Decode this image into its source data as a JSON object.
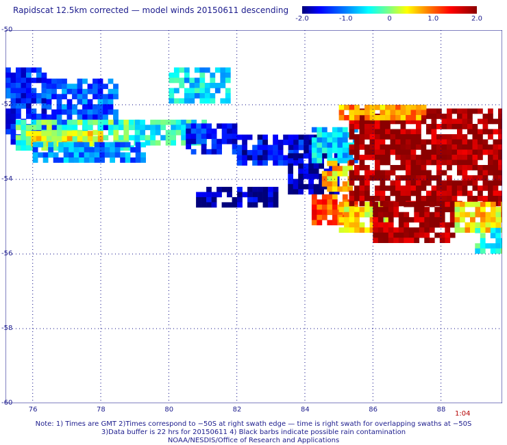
{
  "title": "Rapidscat 12.5km corrected — model winds 20150611 descending",
  "colorbar": {
    "ticks": [
      "-2.0",
      "-1.0",
      "0",
      "1.0",
      "2.0"
    ],
    "values": [
      -2.0,
      -1.0,
      0.0,
      1.0,
      2.0
    ]
  },
  "map": {
    "lon_range": [
      75.2,
      89.8
    ],
    "lat_range": [
      -60,
      -50
    ],
    "lon_ticks": [
      "76",
      "78",
      "80",
      "82",
      "84",
      "86",
      "88"
    ],
    "lat_ticks": [
      "-50",
      "-52",
      "-54",
      "-56",
      "-58",
      "-60"
    ],
    "lon_tick_values": [
      76,
      78,
      80,
      82,
      84,
      86,
      88
    ],
    "lat_tick_values": [
      -50,
      -52,
      -54,
      -56,
      -58,
      -60
    ],
    "grid": "dotted",
    "frame_color": "#000080",
    "regions": [
      {
        "lon": [
          75.2,
          76.4
        ],
        "lat": [
          -51.0,
          -53.0
        ],
        "value": -1.4
      },
      {
        "lon": [
          76.4,
          78.5
        ],
        "lat": [
          -51.3,
          -52.6
        ],
        "value": -1.2
      },
      {
        "lon": [
          75.5,
          79.0
        ],
        "lat": [
          -52.4,
          -53.2
        ],
        "value": -0.2
      },
      {
        "lon": [
          75.8,
          78.0
        ],
        "lat": [
          -52.7,
          -53.1
        ],
        "value": 0.4
      },
      {
        "lon": [
          79.0,
          81.0
        ],
        "lat": [
          -52.4,
          -53.0
        ],
        "value": -0.4
      },
      {
        "lon": [
          76.0,
          79.2
        ],
        "lat": [
          -53.0,
          -53.5
        ],
        "value": -1.0
      },
      {
        "lon": [
          80.0,
          81.8
        ],
        "lat": [
          -51.0,
          -51.9
        ],
        "value": -0.6
      },
      {
        "lon": [
          80.5,
          82.0
        ],
        "lat": [
          -52.5,
          -53.3
        ],
        "value": -1.5
      },
      {
        "lon": [
          82.0,
          84.3
        ],
        "lat": [
          -52.8,
          -53.5
        ],
        "value": -1.6
      },
      {
        "lon": [
          83.5,
          84.9
        ],
        "lat": [
          -53.3,
          -54.4
        ],
        "value": -1.9
      },
      {
        "lon": [
          80.8,
          83.2
        ],
        "lat": [
          -54.2,
          -54.7
        ],
        "value": -1.9
      },
      {
        "lon": [
          84.2,
          85.5
        ],
        "lat": [
          -52.6,
          -53.5
        ],
        "value": -0.7
      },
      {
        "lon": [
          84.5,
          85.4
        ],
        "lat": [
          -53.5,
          -54.2
        ],
        "value": 0.6
      },
      {
        "lon": [
          84.2,
          85.5
        ],
        "lat": [
          -54.4,
          -55.1
        ],
        "value": 1.1
      },
      {
        "lon": [
          85.0,
          86.4
        ],
        "lat": [
          -54.6,
          -55.3
        ],
        "value": 0.5
      },
      {
        "lon": [
          85.3,
          89.8
        ],
        "lat": [
          -52.1,
          -54.6
        ],
        "value": 1.9
      },
      {
        "lon": [
          86.0,
          88.4
        ],
        "lat": [
          -54.6,
          -55.6
        ],
        "value": 1.9
      },
      {
        "lon": [
          85.0,
          87.5
        ],
        "lat": [
          -52.0,
          -52.4
        ],
        "value": 0.8
      },
      {
        "lon": [
          88.4,
          89.8
        ],
        "lat": [
          -54.6,
          -55.4
        ],
        "value": 0.5
      },
      {
        "lon": [
          89.0,
          89.8
        ],
        "lat": [
          -55.3,
          -55.9
        ],
        "value": -0.3
      }
    ]
  },
  "timestamp": "1:04",
  "footer": {
    "line1": "Note: 1) Times are GMT 2)Times correspond to −50S at right swath edge — time is right swath for overlapping swaths at −50S",
    "line2": "3)Data buffer is 22 hrs for 20150611 4) Black barbs indicate possible rain contamination",
    "line3": "NOAA/NESDIS/Office of Research and Applications"
  }
}
